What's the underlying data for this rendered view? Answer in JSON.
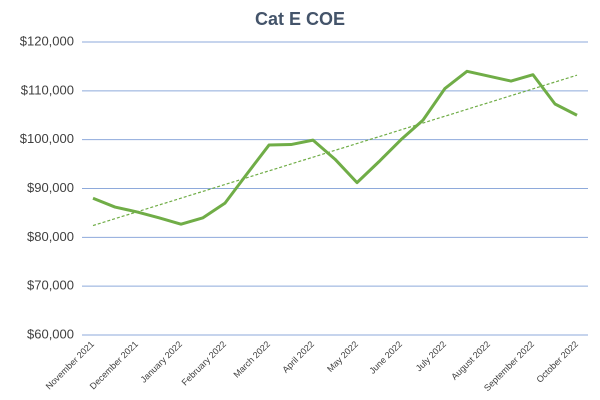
{
  "chart_data": {
    "type": "line",
    "title": "Cat E COE",
    "categories": [
      "November 2021",
      null,
      "December 2021",
      null,
      "January 2022",
      null,
      "February 2022",
      null,
      "March 2022",
      null,
      "April 2022",
      null,
      "May 2022",
      null,
      "June 2022",
      null,
      "July 2022",
      null,
      "August 2022",
      null,
      "September 2022",
      null,
      "October 2022"
    ],
    "series": [
      {
        "name": "Cat E COE",
        "color": "#70ad47",
        "values": [
          88000,
          86200,
          85200,
          84000,
          82700,
          84000,
          87000,
          93000,
          98900,
          99000,
          99900,
          96000,
          91200,
          95500,
          100000,
          104000,
          110500,
          114000,
          113000,
          112000,
          113300,
          107300,
          105000
        ]
      }
    ],
    "ylim": [
      60000,
      120000
    ],
    "yticks": [
      {
        "value": 60000,
        "label": "$60,000"
      },
      {
        "value": 70000,
        "label": "$70,000"
      },
      {
        "value": 80000,
        "label": "$80,000"
      },
      {
        "value": 90000,
        "label": "$90,000"
      },
      {
        "value": 100000,
        "label": "$100,000"
      },
      {
        "value": 110000,
        "label": "$110,000"
      },
      {
        "value": 120000,
        "label": "$120,000"
      }
    ],
    "grid": true,
    "trendline": "linear"
  }
}
